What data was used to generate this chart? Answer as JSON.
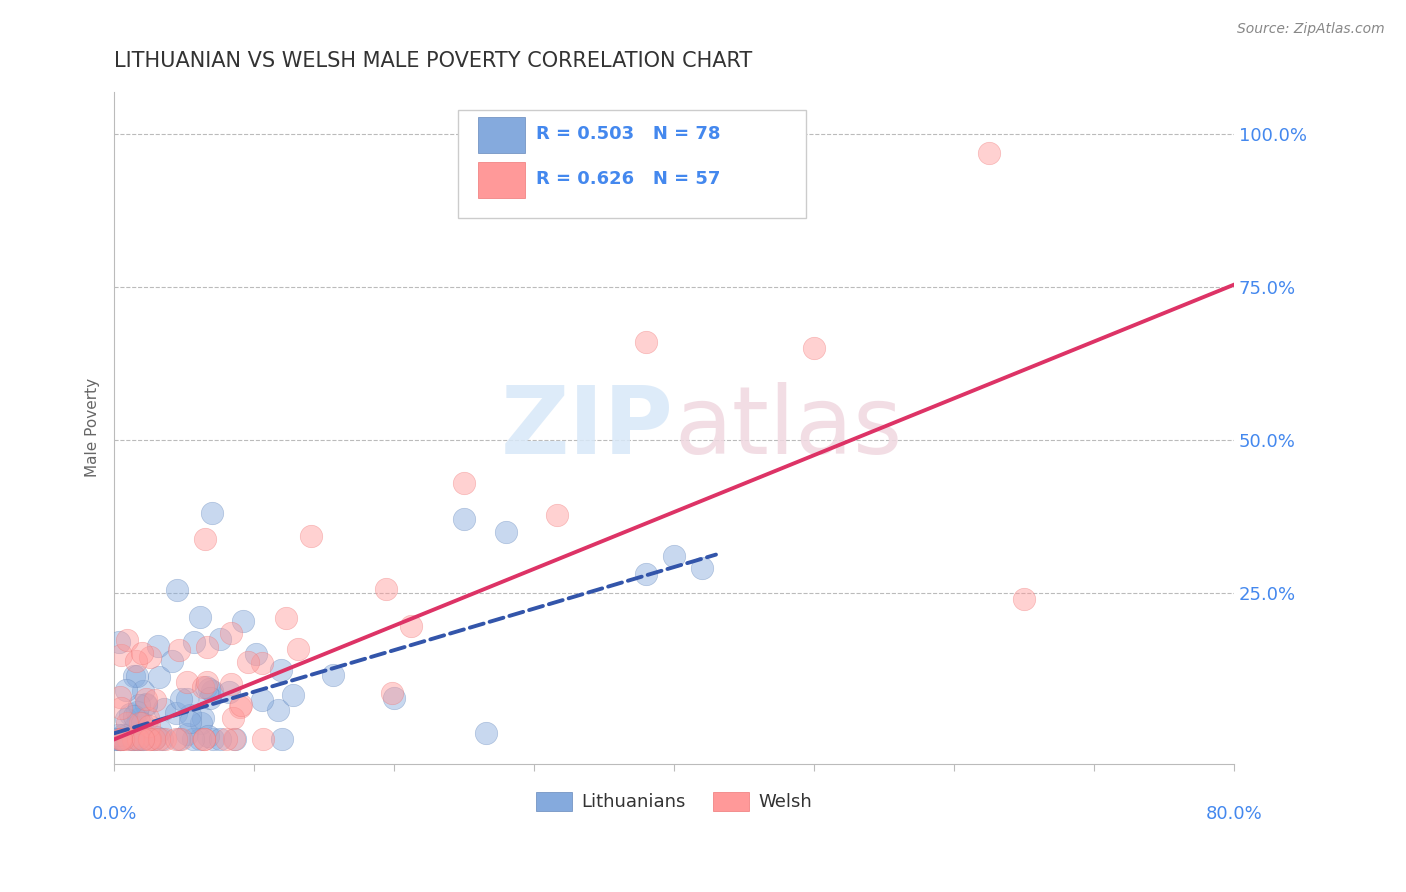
{
  "title": "LITHUANIAN VS WELSH MALE POVERTY CORRELATION CHART",
  "source_text": "Source: ZipAtlas.com",
  "ylabel_label": "Male Poverty",
  "xlim": [
    0.0,
    0.8
  ],
  "ylim": [
    -0.03,
    1.07
  ],
  "ytick_positions": [
    0.25,
    0.5,
    0.75,
    1.0
  ],
  "ytick_labels": [
    "25.0%",
    "50.0%",
    "75.0%",
    "100.0%"
  ],
  "xtick_positions": [
    0.0,
    0.1,
    0.2,
    0.3,
    0.4,
    0.5,
    0.6,
    0.7,
    0.8
  ],
  "legend_R1": "R = 0.503",
  "legend_N1": "N = 78",
  "legend_R2": "R = 0.626",
  "legend_N2": "N = 57",
  "color_lithuanian": "#85AADD",
  "color_welsh": "#FF9999",
  "color_lit_edge": "#6688BB",
  "color_welsh_edge": "#EE7777",
  "color_line_lithuanian": "#3355AA",
  "color_line_welsh": "#DD3366",
  "color_axis_labels": "#4488EE",
  "watermark_color": "#E0E8F5",
  "watermark_color2": "#F5E0E8",
  "background_color": "#FFFFFF",
  "grid_color": "#BBBBBB",
  "title_color": "#333333",
  "title_fontsize": 15,
  "scatter_alpha": 0.45,
  "scatter_size": 260,
  "R_lit": 0.503,
  "N_lit": 78,
  "R_welsh": 0.626,
  "N_welsh": 57,
  "line_ystart_lit": 0.02,
  "line_slope_lit": 0.68,
  "line_xend_lit": 0.43,
  "line_ystart_welsh": 0.01,
  "line_slope_welsh": 0.93,
  "line_xend_welsh": 0.8
}
